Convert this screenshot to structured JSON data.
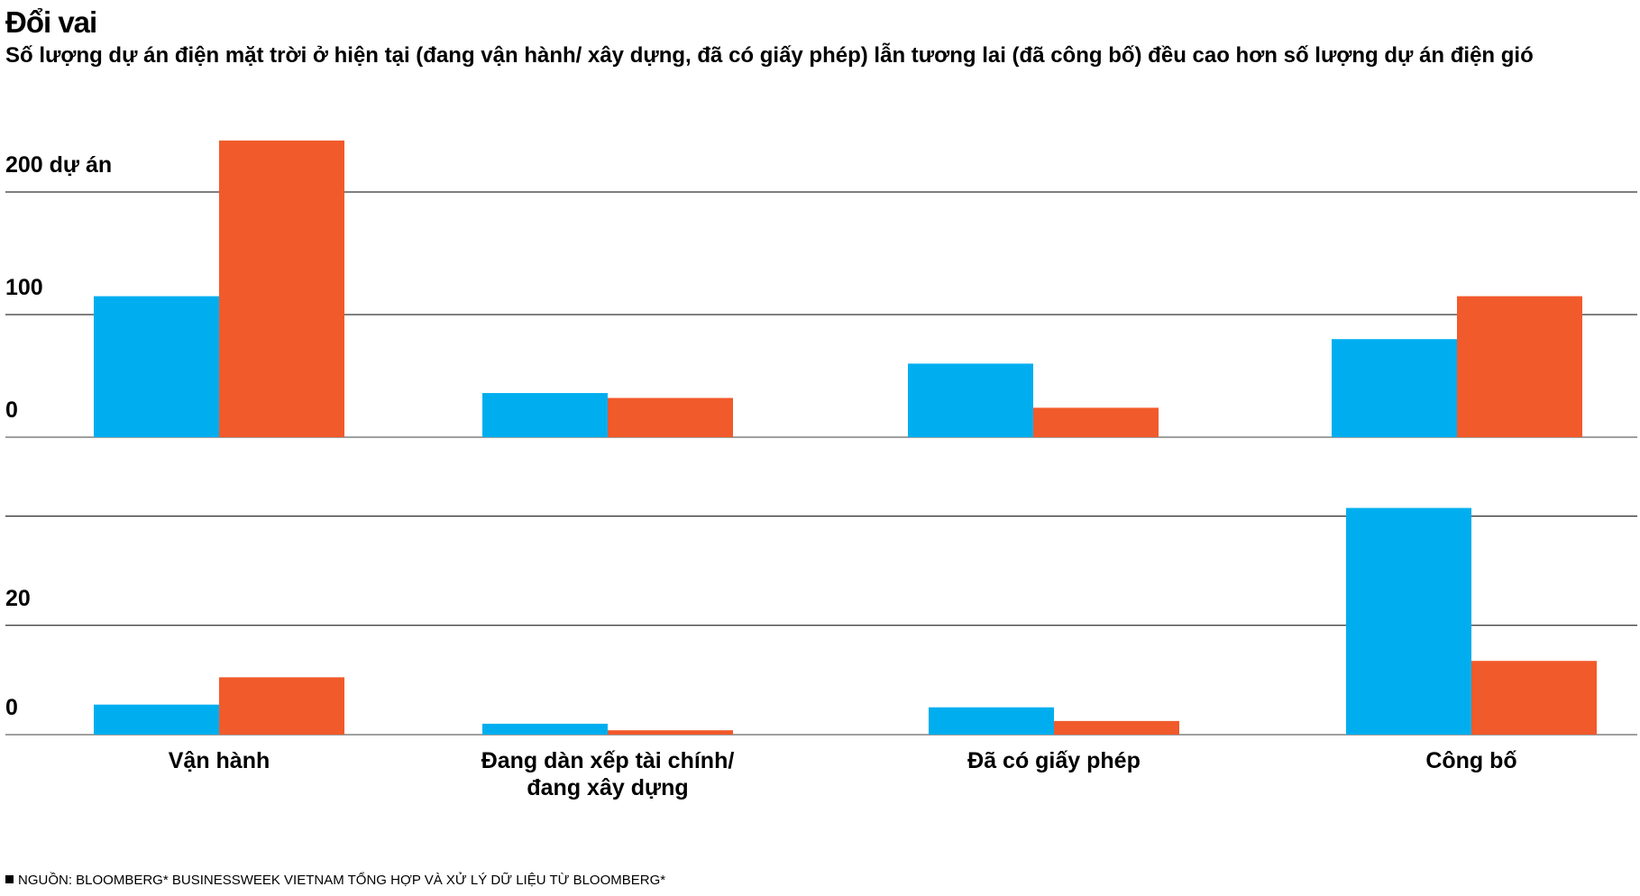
{
  "title": "Đổi vai",
  "subtitle": "Số lượng dự án điện mặt trời ở hiện tại (đang vận hành/ xây dựng, đã có giấy phép) lẫn tương lai (đã công bố) đều cao hơn số lượng dự án điện gió",
  "source": "NGUỒN: BLOOMBERG* BUSINESSWEEK VIETNAM TỔNG HỢP VÀ XỬ LÝ DỮ LIỆU TỪ BLOOMBERG*",
  "colors": {
    "blue": "#00aeef",
    "orange": "#f15a2b",
    "grid": "#808080",
    "axis": "#000000"
  },
  "chart_data": [
    {
      "type": "bar",
      "categories": [
        "Vận hành",
        "Đang dàn xếp tài chính/ đang xây dựng",
        "Đã có giấy phép",
        "Công bố"
      ],
      "series": [
        {
          "values": [
            115,
            36,
            60,
            80
          ],
          "color": "#00aeef"
        },
        {
          "values": [
            242,
            32,
            24,
            115
          ],
          "color": "#f15a2b"
        }
      ],
      "ylim": [
        0,
        250
      ],
      "yticks": [
        {
          "value": 0,
          "label": "0"
        },
        {
          "value": 100,
          "label": "100"
        },
        {
          "value": 200,
          "label": "200 dự án"
        }
      ],
      "grid": true
    },
    {
      "type": "bar",
      "categories": [
        "Vận hành",
        "Đang dàn xếp tài chính/ đang xây dựng",
        "Đã có giấy phép",
        "Công bố"
      ],
      "category_labels": [
        [
          "Vận hành"
        ],
        [
          "Đang dàn xếp tài chính/",
          "đang xây dựng"
        ],
        [
          "Đã có giấy phép"
        ],
        [
          "Công bố"
        ]
      ],
      "series": [
        {
          "values": [
            5.5,
            2,
            5,
            41.5
          ],
          "color": "#00aeef"
        },
        {
          "values": [
            10.5,
            0.8,
            2.5,
            13.5
          ],
          "color": "#f15a2b"
        }
      ],
      "ylim": [
        0,
        40
      ],
      "yticks": [
        {
          "value": 0,
          "label": "0"
        },
        {
          "value": 20,
          "label": "20"
        },
        {
          "value": 40,
          "label": ""
        }
      ],
      "grid": true
    }
  ]
}
